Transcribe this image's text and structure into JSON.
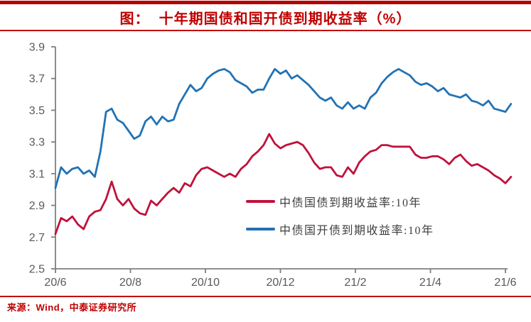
{
  "page": {
    "title": "图：  十年期国债和国开债到期收益率（%）",
    "source": "来源：Wind，中泰证券研究所"
  },
  "colors": {
    "accent_red": "#C00000",
    "top_bar": "#B40000",
    "axis_line": "#7F7F7F",
    "tick_label": "#595959",
    "legend_text": "#3F3F3F",
    "series_treasury": "#C0113C",
    "series_cdb": "#2272B4"
  },
  "chart_data": {
    "type": "line",
    "title": "十年期国债和国开债到期收益率（%）",
    "grid": "off",
    "legend_position": "center-right-inside",
    "x_axis": {
      "unit": "months since 2020-06",
      "tick_labels": [
        "20/6",
        "20/8",
        "20/10",
        "20/12",
        "21/2",
        "21/4",
        "21/6"
      ],
      "tick_positions_months": [
        0,
        2,
        4,
        6,
        8,
        10,
        12
      ],
      "range_months": [
        0,
        12.15
      ]
    },
    "y_axis": {
      "min": 2.5,
      "max": 3.9,
      "ticks": [
        3.9,
        3.7,
        3.5,
        3.3,
        3.1,
        2.9,
        2.7,
        2.5
      ],
      "tick_format": "one-decimal"
    },
    "x_start_month": 0,
    "x_step_month": 0.15,
    "series": [
      {
        "name": "中债国债到期收益率:10年",
        "color_key": "series_treasury",
        "values": [
          2.72,
          2.82,
          2.8,
          2.83,
          2.78,
          2.75,
          2.83,
          2.86,
          2.87,
          2.94,
          3.05,
          2.94,
          2.9,
          2.94,
          2.88,
          2.85,
          2.84,
          2.93,
          2.9,
          2.94,
          2.98,
          3.01,
          2.98,
          3.04,
          3.02,
          3.09,
          3.13,
          3.14,
          3.12,
          3.1,
          3.08,
          3.1,
          3.08,
          3.13,
          3.16,
          3.21,
          3.24,
          3.28,
          3.35,
          3.29,
          3.26,
          3.28,
          3.29,
          3.3,
          3.28,
          3.23,
          3.17,
          3.13,
          3.14,
          3.14,
          3.09,
          3.08,
          3.14,
          3.1,
          3.17,
          3.21,
          3.24,
          3.25,
          3.28,
          3.28,
          3.27,
          3.27,
          3.27,
          3.27,
          3.22,
          3.2,
          3.2,
          3.21,
          3.21,
          3.19,
          3.16,
          3.2,
          3.22,
          3.18,
          3.15,
          3.16,
          3.14,
          3.12,
          3.09,
          3.07,
          3.04,
          3.08
        ]
      },
      {
        "name": "中债国开债到期收益率:10年",
        "color_key": "series_cdb",
        "values": [
          3.01,
          3.14,
          3.1,
          3.13,
          3.14,
          3.1,
          3.12,
          3.08,
          3.24,
          3.49,
          3.51,
          3.44,
          3.42,
          3.37,
          3.32,
          3.34,
          3.43,
          3.46,
          3.41,
          3.46,
          3.43,
          3.44,
          3.54,
          3.6,
          3.66,
          3.62,
          3.64,
          3.7,
          3.73,
          3.75,
          3.76,
          3.74,
          3.69,
          3.67,
          3.65,
          3.61,
          3.63,
          3.63,
          3.7,
          3.76,
          3.73,
          3.75,
          3.7,
          3.72,
          3.69,
          3.66,
          3.62,
          3.58,
          3.56,
          3.58,
          3.53,
          3.51,
          3.55,
          3.51,
          3.53,
          3.51,
          3.58,
          3.61,
          3.67,
          3.71,
          3.74,
          3.76,
          3.74,
          3.72,
          3.68,
          3.66,
          3.67,
          3.65,
          3.62,
          3.64,
          3.6,
          3.59,
          3.58,
          3.6,
          3.56,
          3.55,
          3.53,
          3.56,
          3.51,
          3.5,
          3.49,
          3.54
        ]
      }
    ]
  }
}
